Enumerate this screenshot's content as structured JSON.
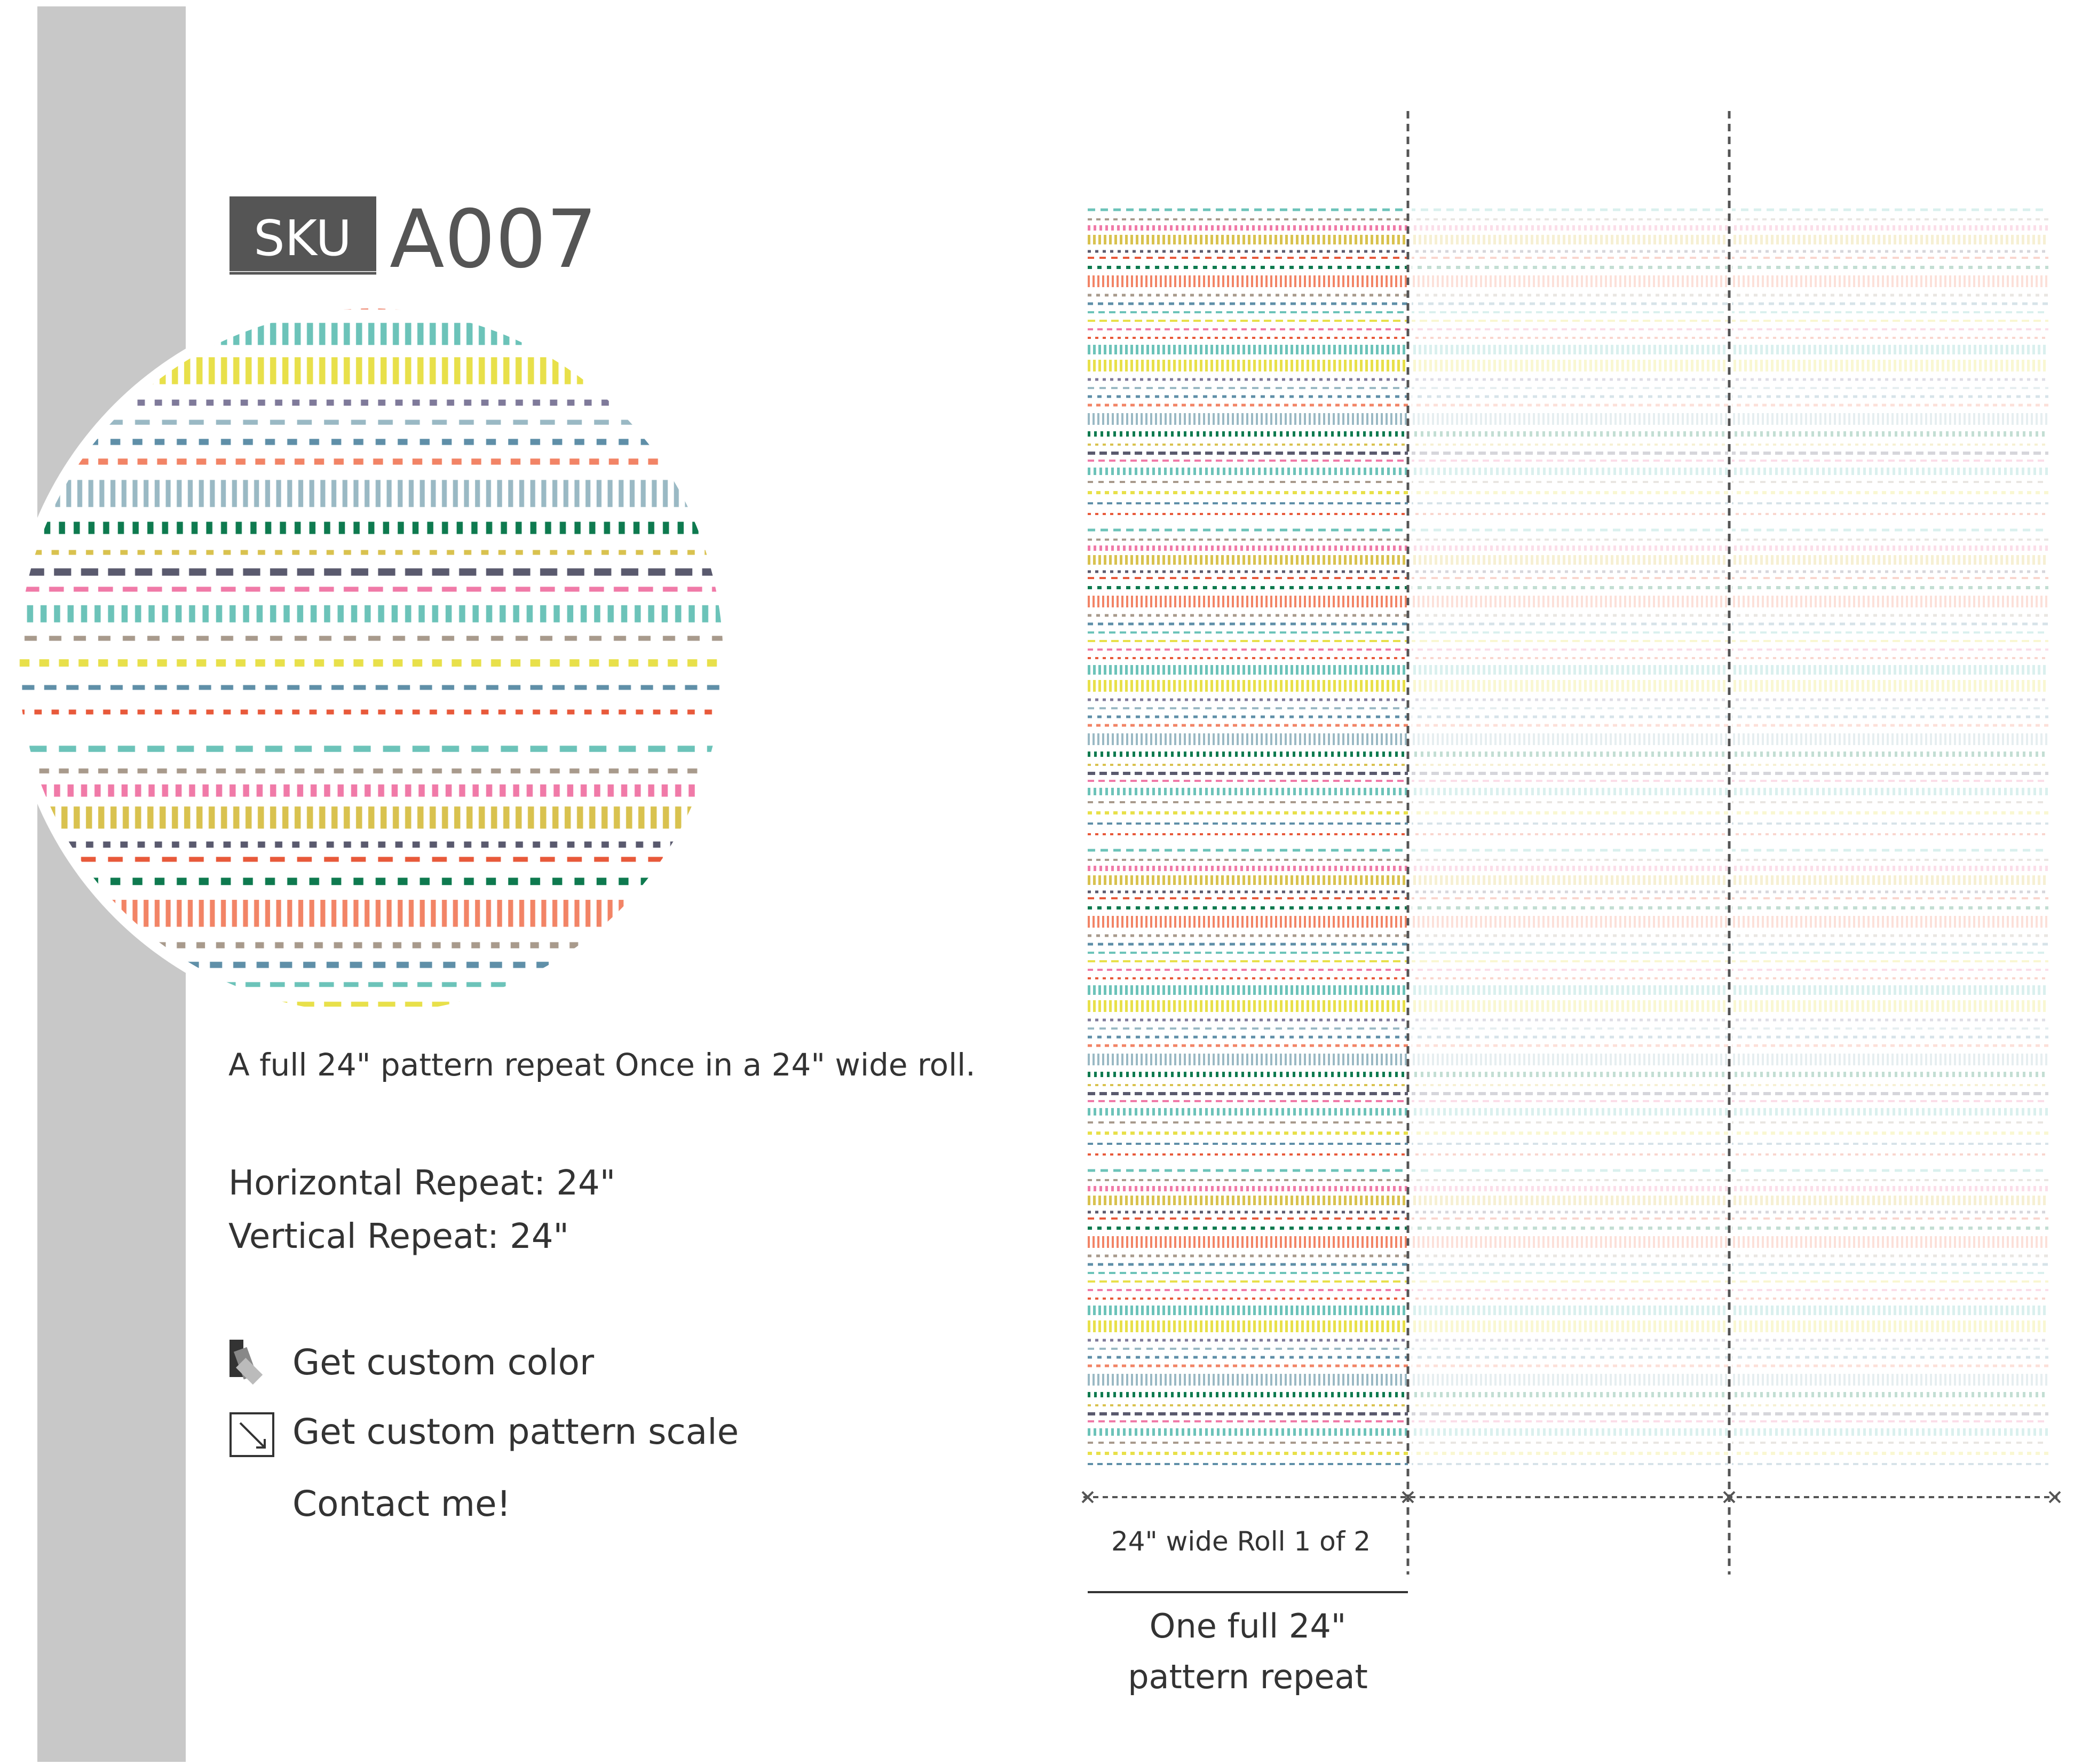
{
  "sku": {
    "label": "SKU",
    "code": "A007"
  },
  "description": "A full 24\" pattern repeat Once in a 24\" wide roll.",
  "repeats": {
    "horizontal": "Horizontal Repeat: 24\"",
    "vertical": "Vertical Repeat: 24\""
  },
  "actions": {
    "color": "Get custom color",
    "scale": "Get custom pattern scale",
    "contact": "Contact me!"
  },
  "diagram": {
    "roll_label": "24\" wide Roll 1 of 2",
    "repeat_label_line1": "One full 24\"",
    "repeat_label_line2": "pattern repeat"
  }
}
